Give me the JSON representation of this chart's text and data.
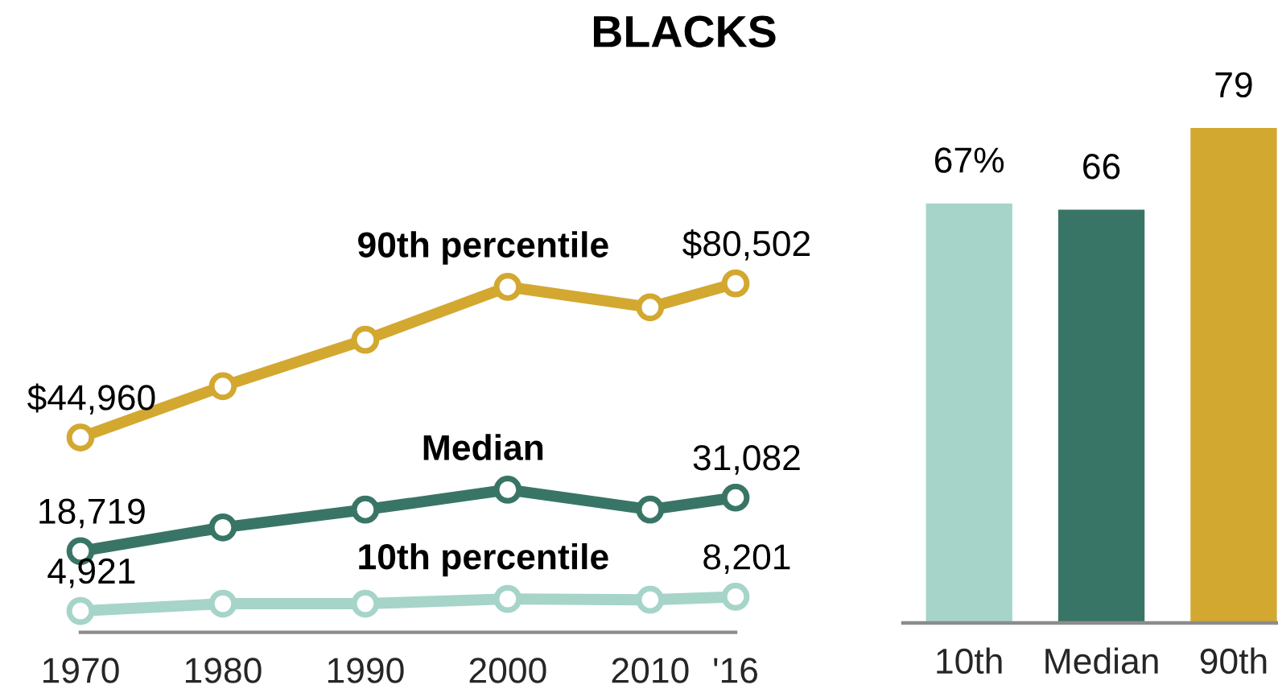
{
  "chart_data": [
    {
      "type": "line",
      "title": "BLACKS",
      "x": [
        1970,
        1980,
        1990,
        2000,
        2010,
        2016
      ],
      "xlim": [
        1970,
        2016
      ],
      "xticks": [
        1970,
        1980,
        1990,
        2000,
        2010,
        {
          "value": 2016,
          "label": "'16"
        }
      ],
      "tick_labels": "x",
      "marker": "circle",
      "series": [
        {
          "name": "90th percentile",
          "color": "#d3a831",
          "values": [
            44960,
            56800,
            67500,
            79700,
            75000,
            80502
          ],
          "value_labels": [
            "$44,960",
            null,
            null,
            null,
            null,
            "$80,502"
          ]
        },
        {
          "name": "Median",
          "color": "#397566",
          "values": [
            18719,
            24200,
            28300,
            32900,
            28300,
            31082
          ],
          "value_labels": [
            "18,719",
            null,
            null,
            null,
            null,
            "31,082"
          ]
        },
        {
          "name": "10th percentile",
          "color": "#a6d4c9",
          "values": [
            4921,
            6600,
            6600,
            7700,
            7500,
            8201
          ],
          "value_labels": [
            "4,921",
            null,
            null,
            null,
            null,
            "8,201"
          ]
        }
      ]
    },
    {
      "type": "bar",
      "categories": [
        "10th",
        "Median",
        "90th"
      ],
      "values": [
        67,
        66,
        79
      ],
      "colors": [
        "#a6d4c9",
        "#397566",
        "#d3a831"
      ],
      "value_labels": [
        "67%",
        "66",
        "79"
      ],
      "tick_labels": "x"
    }
  ]
}
